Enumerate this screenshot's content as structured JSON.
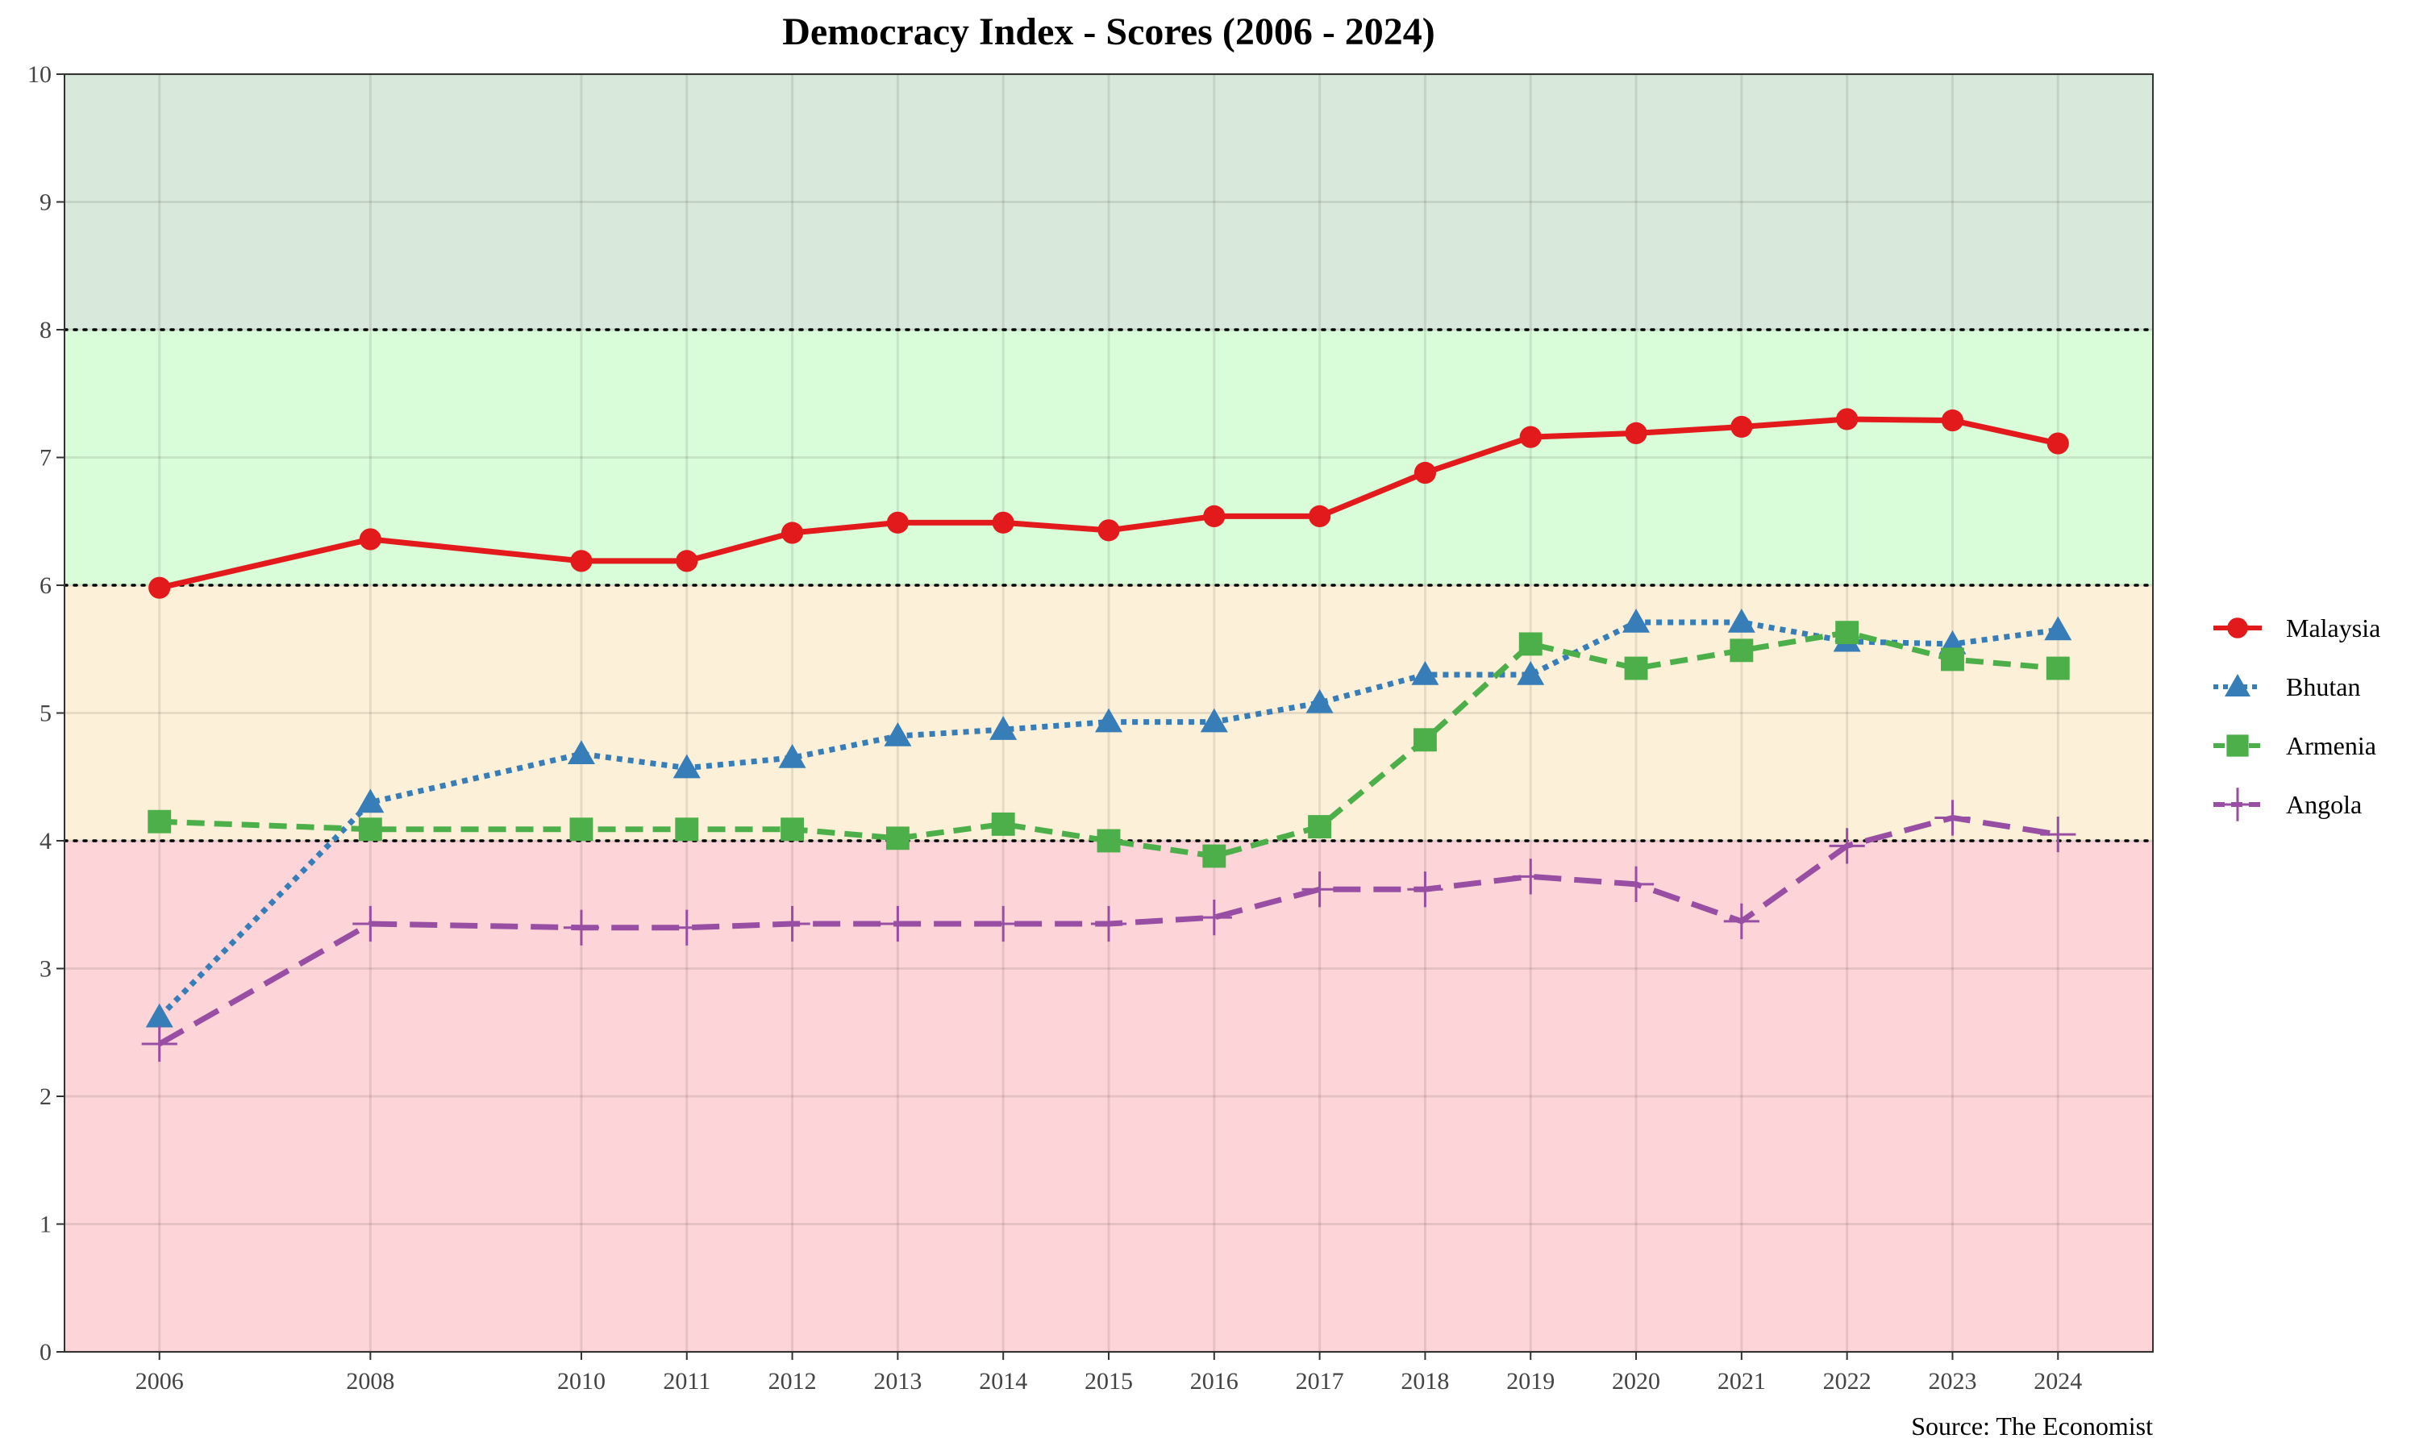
{
  "chart_data": {
    "type": "line",
    "title": "Democracy Index - Scores (2006 - 2024)",
    "caption": "Source: The Economist",
    "xlabel": "",
    "ylabel": "",
    "x": [
      2006,
      2008,
      2010,
      2011,
      2012,
      2013,
      2014,
      2015,
      2016,
      2017,
      2018,
      2019,
      2020,
      2021,
      2022,
      2023,
      2024
    ],
    "xlim": [
      2005.1,
      2024.9
    ],
    "ylim": [
      0,
      10
    ],
    "y_ticks": [
      0,
      1,
      2,
      3,
      4,
      5,
      6,
      7,
      8,
      9,
      10
    ],
    "grid": true,
    "legend_position": "right",
    "threshold_lines": [
      4,
      6,
      8
    ],
    "bands": [
      {
        "from": 0,
        "to": 4,
        "color": "#fdd5d8"
      },
      {
        "from": 4,
        "to": 6,
        "color": "#fdf0d9"
      },
      {
        "from": 6,
        "to": 8,
        "color": "#d9fcd9"
      },
      {
        "from": 8,
        "to": 10,
        "color": "#d8e8da"
      }
    ],
    "series": [
      {
        "name": "Malaysia",
        "color": "#e31a1c",
        "marker": "circle",
        "dash": "solid",
        "values": [
          5.98,
          6.36,
          6.19,
          6.19,
          6.41,
          6.49,
          6.49,
          6.43,
          6.54,
          6.54,
          6.88,
          7.16,
          7.19,
          7.24,
          7.3,
          7.29,
          7.11
        ]
      },
      {
        "name": "Bhutan",
        "color": "#377eb8",
        "marker": "triangle",
        "dash": "dotted",
        "values": [
          2.62,
          4.3,
          4.68,
          4.57,
          4.65,
          4.82,
          4.87,
          4.93,
          4.93,
          5.08,
          5.3,
          5.3,
          5.71,
          5.71,
          5.56,
          5.54,
          5.65
        ]
      },
      {
        "name": "Armenia",
        "color": "#4daf4a",
        "marker": "square",
        "dash": "dashed",
        "values": [
          4.15,
          4.09,
          4.09,
          4.09,
          4.09,
          4.02,
          4.13,
          4.0,
          3.88,
          4.11,
          4.79,
          5.54,
          5.35,
          5.49,
          5.63,
          5.42,
          5.35
        ]
      },
      {
        "name": "Angola",
        "color": "#984ea3",
        "marker": "plus",
        "dash": "longdash",
        "values": [
          2.41,
          3.35,
          3.32,
          3.32,
          3.35,
          3.35,
          3.35,
          3.35,
          3.4,
          3.62,
          3.62,
          3.72,
          3.66,
          3.37,
          3.96,
          4.18,
          4.05
        ]
      }
    ]
  }
}
